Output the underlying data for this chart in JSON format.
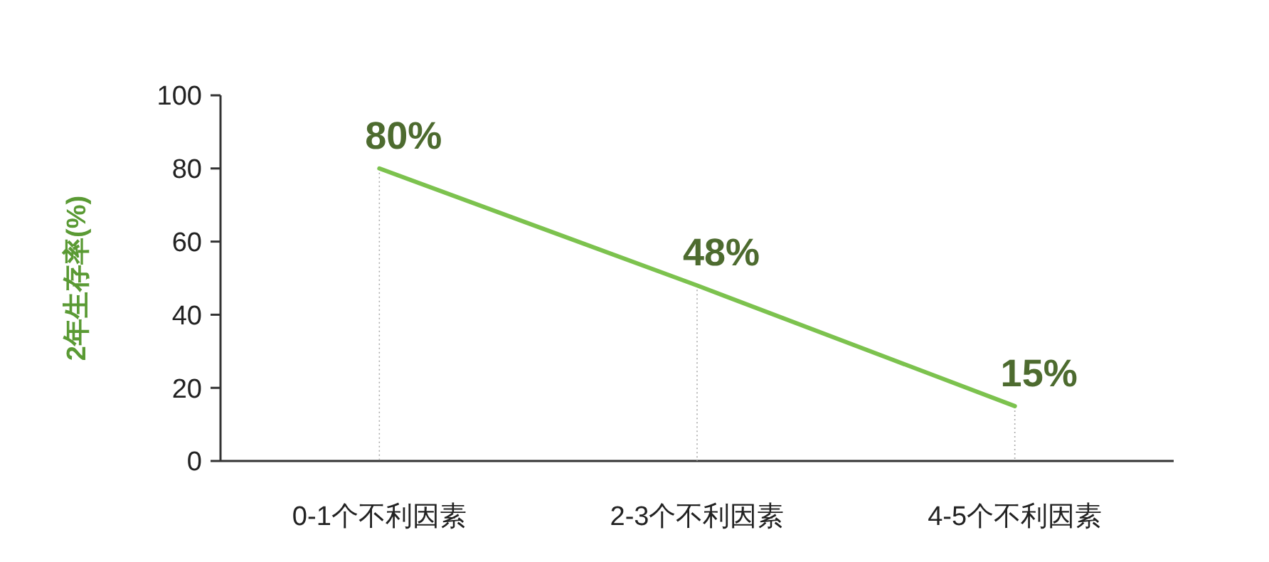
{
  "chart_data": {
    "type": "line",
    "ylabel": "2年生存率(%)",
    "categories": [
      "0-1个不利因素",
      "2-3个不利因素",
      "4-5个不利因素"
    ],
    "series": [
      {
        "color": "#7cc24e",
        "values": [
          80,
          48,
          15
        ],
        "value_labels": [
          "80%",
          "48%",
          "15%"
        ]
      }
    ],
    "ylim": [
      0,
      100
    ],
    "yticks": [
      0,
      20,
      40,
      60,
      80,
      100
    ],
    "grid": "x",
    "marker": "none",
    "line_style": "solid"
  }
}
